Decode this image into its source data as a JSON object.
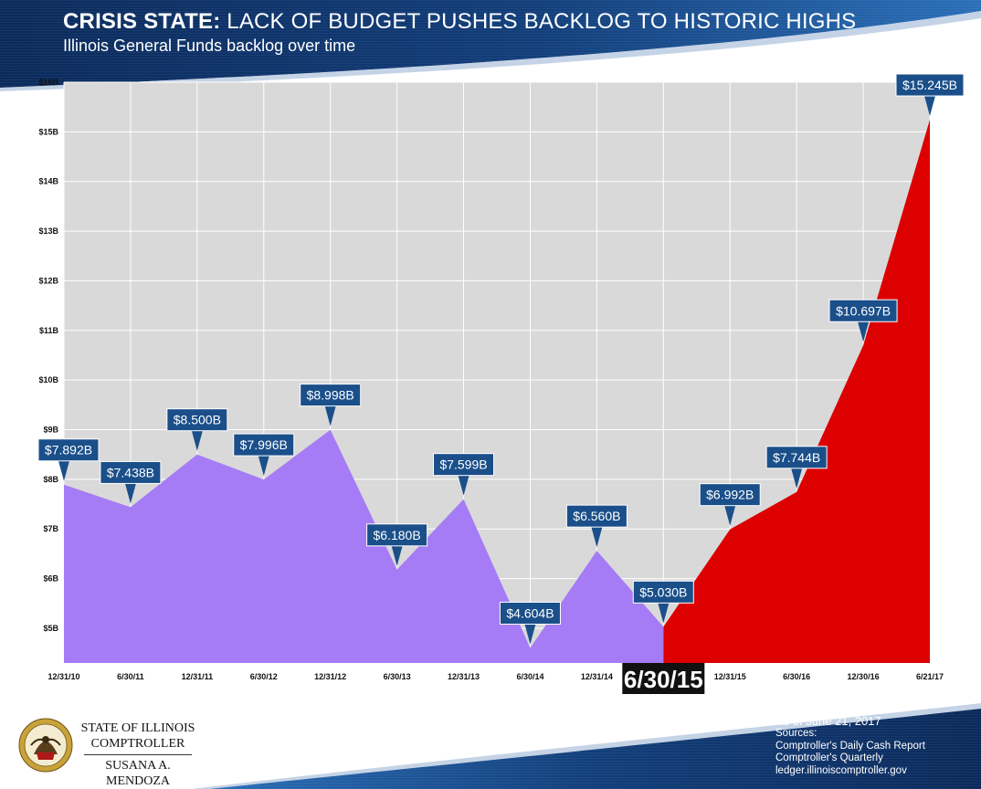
{
  "header": {
    "title_bold": "CRISIS STATE:",
    "title_rest": "LACK OF BUDGET PUSHES BACKLOG TO HISTORIC HIGHS",
    "subtitle": "Illinois General Funds backlog over time"
  },
  "colors": {
    "banner_dark": "#0b2a5b",
    "banner_light": "#1f5fa8",
    "plot_bg": "#d9d9d9",
    "pre_area": "#a57cf5",
    "post_area": "#dd0000",
    "callout": "#1a4f8a",
    "highlight_label_bg": "#111111"
  },
  "chart_data": {
    "type": "area",
    "title": "",
    "xlabel": "",
    "ylabel": "",
    "ylim": [
      4.3,
      16
    ],
    "grid": true,
    "y_ticks": [
      "$5B",
      "$6B",
      "$7B",
      "$8B",
      "$9B",
      "$10B",
      "$11B",
      "$12B",
      "$13B",
      "$14B",
      "$15B",
      "$16B"
    ],
    "y_tick_values": [
      5,
      6,
      7,
      8,
      9,
      10,
      11,
      12,
      13,
      14,
      15,
      16
    ],
    "x": [
      "12/31/10",
      "6/30/11",
      "12/31/11",
      "6/30/12",
      "12/31/12",
      "6/30/13",
      "12/31/13",
      "6/30/14",
      "12/31/14",
      "6/30/15",
      "12/31/15",
      "6/30/16",
      "12/30/16",
      "6/21/17"
    ],
    "x_tick_labels": [
      "12/31/10",
      "6/30/11",
      "12/31/11",
      "6/30/12",
      "12/31/12",
      "6/30/13",
      "12/31/13",
      "6/30/14",
      "12/31/14",
      "",
      "12/31/15",
      "6/30/16",
      "12/30/16",
      "6/21/17"
    ],
    "highlight_x_label": "6/30/15",
    "highlight_index": 9,
    "values": [
      7.892,
      7.438,
      8.5,
      7.996,
      8.998,
      6.18,
      7.599,
      4.604,
      6.56,
      5.03,
      6.992,
      7.744,
      10.697,
      15.245
    ],
    "data_labels": [
      "$7.892B",
      "$7.438B",
      "$8.500B",
      "$7.996B",
      "$8.998B",
      "$6.180B",
      "$7.599B",
      "$4.604B",
      "$6.560B",
      "$5.030B",
      "$6.992B",
      "$7.744B",
      "$10.697B",
      "$15.245B"
    ]
  },
  "footer": {
    "org_line1": "STATE OF ILLINOIS",
    "org_line2": "COMPTROLLER",
    "org_line3": "SUSANA A. MENDOZA",
    "as_of": "As of June 21, 2017",
    "sources_heading": "Sources:",
    "sources": [
      "Comptroller's Daily Cash Report",
      "Comptroller's Quarterly",
      "ledger.illinoiscomptroller.gov"
    ]
  }
}
